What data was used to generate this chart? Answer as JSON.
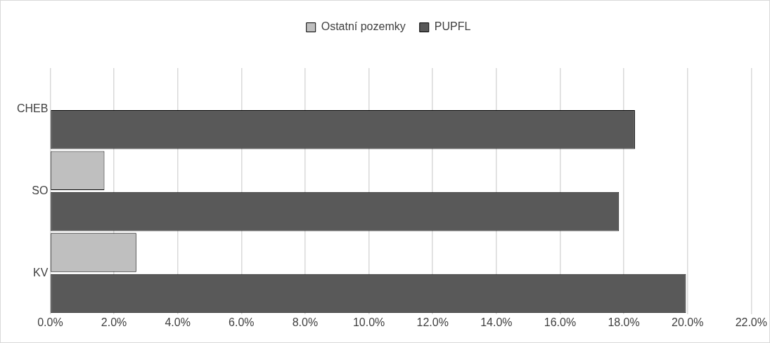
{
  "chart_data": {
    "type": "bar",
    "orientation": "horizontal",
    "categories": [
      "CHEB",
      "SO",
      "KV"
    ],
    "series": [
      {
        "name": "Ostatní pozemky",
        "color": "#bfbfbf",
        "values": [
          0,
          1.7,
          2.7
        ]
      },
      {
        "name": "PUPFL",
        "color": "#595959",
        "values": [
          18.35,
          17.85,
          19.95
        ]
      }
    ],
    "xlim": [
      0,
      22
    ],
    "xticks": [
      {
        "value": 0,
        "label": "0.0%"
      },
      {
        "value": 2,
        "label": "2.0%"
      },
      {
        "value": 4,
        "label": "4.0%"
      },
      {
        "value": 6,
        "label": "6.0%"
      },
      {
        "value": 8,
        "label": "8.0%"
      },
      {
        "value": 10,
        "label": "10.0%"
      },
      {
        "value": 12,
        "label": "12.0%"
      },
      {
        "value": 14,
        "label": "14.0%"
      },
      {
        "value": 16,
        "label": "16.0%"
      },
      {
        "value": 18,
        "label": "18.0%"
      },
      {
        "value": 20,
        "label": "20.0%"
      },
      {
        "value": 22,
        "label": "22.0%"
      }
    ],
    "grid": "x",
    "legend": "top"
  }
}
